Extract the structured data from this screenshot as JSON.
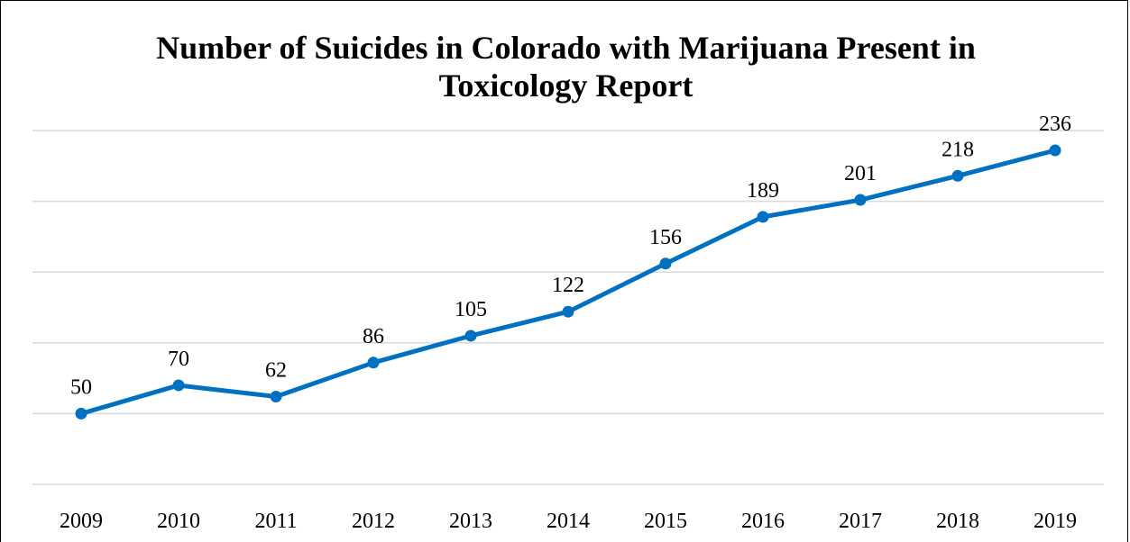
{
  "chart_data": {
    "type": "line",
    "title_lines": [
      "Number of Suicides in Colorado with Marijuana Present in",
      "Toxicology Report"
    ],
    "categories": [
      "2009",
      "2010",
      "2011",
      "2012",
      "2013",
      "2014",
      "2015",
      "2016",
      "2017",
      "2018",
      "2019"
    ],
    "series": [
      {
        "values": [
          50,
          70,
          62,
          86,
          105,
          122,
          156,
          189,
          201,
          218,
          236
        ],
        "color": "#0070c0"
      }
    ],
    "ylim": [
      0,
      250
    ],
    "y_gridline_step": 50,
    "grid": true,
    "legend": "none",
    "data_labels": true,
    "markers": true
  }
}
